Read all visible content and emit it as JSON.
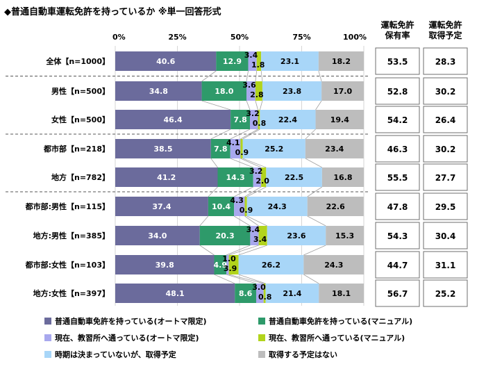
{
  "chart_data": {
    "type": "bar",
    "orientation": "horizontal",
    "stacked": true,
    "title": "◆普通自動車運転免許を持っているか ※単一回答形式",
    "x_ticks": [
      "0%",
      "25%",
      "50%",
      "75%",
      "100%"
    ],
    "xlim": [
      0,
      100
    ],
    "categories": [
      "全体【n=1000】",
      "男性【n=500】",
      "女性【n=500】",
      "都市部【n=218】",
      "地方【n=782】",
      "都市部:男性【n=115】",
      "地方:男性【n=385】",
      "都市部:女性【n=103】",
      "地方:女性【n=397】"
    ],
    "series": [
      {
        "name": "普通自動車免許を持っている(オートマ限定)",
        "color": "#6b6b9c",
        "label_color": "#ffffff",
        "values": [
          40.6,
          34.8,
          46.4,
          38.5,
          41.2,
          37.4,
          34.0,
          39.8,
          48.1
        ]
      },
      {
        "name": "普通自動車免許を持っている(マニュアル)",
        "color": "#2e9a6a",
        "label_color": "#ffffff",
        "values": [
          12.9,
          18.0,
          7.8,
          7.8,
          14.3,
          10.4,
          20.3,
          4.9,
          8.6
        ]
      },
      {
        "name": "現在、教習所へ通っている(オートマ限定)",
        "color": "#a8a8ee",
        "label_color": "#000000",
        "values": [
          3.4,
          3.6,
          3.2,
          4.1,
          3.2,
          4.3,
          3.4,
          1.0,
          3.0
        ]
      },
      {
        "name": "現在、教習所へ通っている(マニュアル)",
        "color": "#b2d41c",
        "label_color": "#000000",
        "values": [
          1.8,
          2.8,
          0.8,
          0.9,
          2.0,
          0.9,
          3.4,
          3.9,
          0.8
        ]
      },
      {
        "name": "時期は決まっていないが、取得予定",
        "color": "#a8d6f8",
        "label_color": "#000000",
        "values": [
          23.1,
          23.8,
          22.4,
          25.2,
          22.5,
          24.3,
          23.6,
          26.2,
          21.4
        ]
      },
      {
        "name": "取得する予定はない",
        "color": "#bdbdbd",
        "label_color": "#000000",
        "values": [
          18.2,
          17.0,
          19.4,
          23.4,
          16.8,
          22.6,
          15.3,
          24.3,
          18.1
        ]
      }
    ],
    "side_columns": [
      {
        "header": [
          "運転免許",
          "保有率"
        ],
        "values": [
          "53.5",
          "52.8",
          "54.2",
          "46.3",
          "55.5",
          "47.8",
          "54.3",
          "44.7",
          "56.7"
        ]
      },
      {
        "header": [
          "運転免許",
          "取得予定"
        ],
        "values": [
          "28.3",
          "30.2",
          "26.4",
          "30.2",
          "27.7",
          "29.5",
          "30.4",
          "31.1",
          "25.2"
        ]
      }
    ],
    "group_dividers_after": [
      0,
      2,
      4
    ],
    "legend_position": "bottom"
  }
}
